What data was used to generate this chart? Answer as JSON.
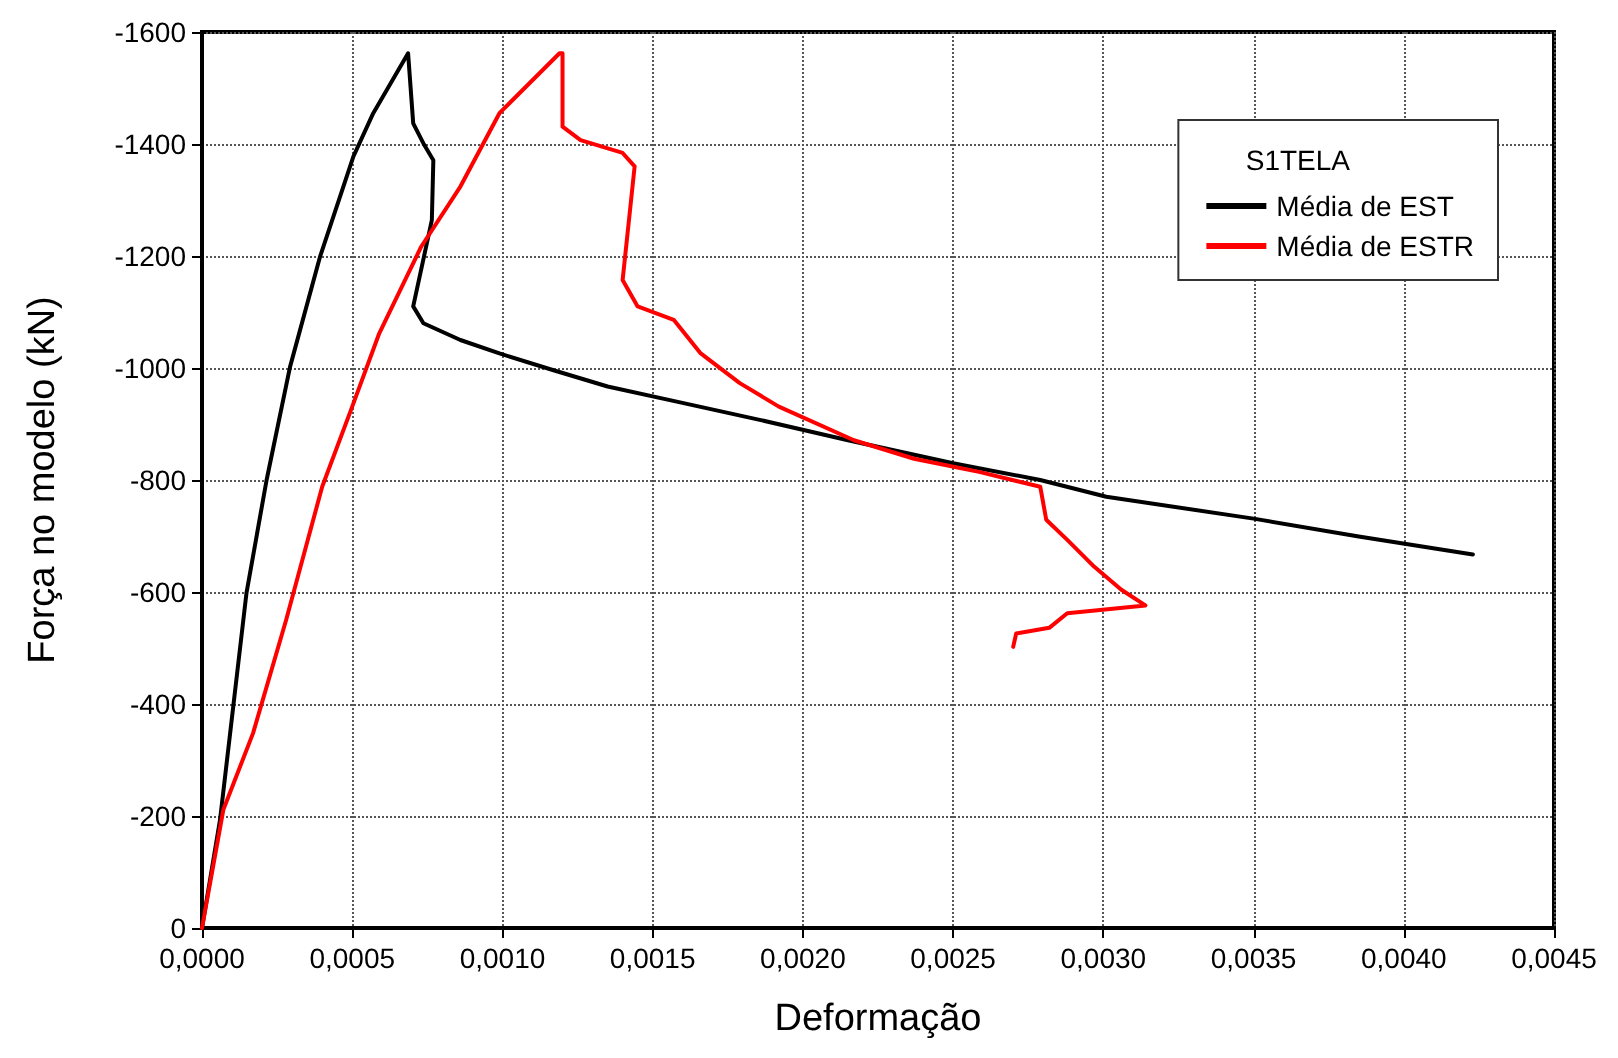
{
  "chart_data": {
    "type": "line",
    "xlabel": "Deformação",
    "ylabel": "Força no modelo (kN)",
    "legend_title": "S1TELA",
    "legend": "top right",
    "grid": true,
    "marker": "none",
    "line_style": "solid",
    "xlim": [
      0,
      0.0045
    ],
    "ylim": [
      0,
      -1600
    ],
    "xticks": [
      {
        "value": 0,
        "label": "0,0000"
      },
      {
        "value": 0.0005,
        "label": "0,0005"
      },
      {
        "value": 0.001,
        "label": "0,0010"
      },
      {
        "value": 0.0015,
        "label": "0,0015"
      },
      {
        "value": 0.002,
        "label": "0,0020"
      },
      {
        "value": 0.0025,
        "label": "0,0025"
      },
      {
        "value": 0.003,
        "label": "0,0030"
      },
      {
        "value": 0.0035,
        "label": "0,0035"
      },
      {
        "value": 0.004,
        "label": "0,0040"
      },
      {
        "value": 0.0045,
        "label": "0,0045"
      }
    ],
    "yticks": [
      0,
      -200,
      -400,
      -600,
      -800,
      -1000,
      -1200,
      -1400,
      -1600
    ],
    "series": [
      {
        "name": "Média de EST",
        "color": "#000000",
        "x": [
          0,
          6e-05,
          0.000148,
          0.000215,
          0.000293,
          0.000393,
          0.000504,
          0.00057,
          0.000686,
          0.000703,
          0.000737,
          0.00077,
          0.000765,
          0.000703,
          0.000737,
          0.00086,
          0.00099,
          0.00117,
          0.00135,
          0.00158,
          0.00186,
          0.00215,
          0.0025,
          0.00279,
          0.00301,
          0.0035,
          0.00385,
          0.00423
        ],
        "values": [
          0,
          -193,
          -598,
          -800,
          -1002,
          -1199,
          -1378,
          -1455,
          -1562,
          -1437,
          -1401,
          -1371,
          -1264,
          -1110,
          -1080,
          -1050,
          -1026,
          -996,
          -967,
          -940,
          -907,
          -871,
          -830,
          -800,
          -770,
          -731,
          -699,
          -667
        ]
      },
      {
        "name": "Média de ESTR",
        "color": "#ff0000",
        "x": [
          0,
          7.1e-05,
          0.00017,
          0.00028,
          0.0004,
          0.0005,
          0.00059,
          0.00073,
          0.00086,
          0.00099,
          0.00119,
          0.0012,
          0.0012,
          0.00126,
          0.0014,
          0.00144,
          0.0014,
          0.00145,
          0.00157,
          0.00166,
          0.00179,
          0.00192,
          0.00217,
          0.00237,
          0.00259,
          0.00279,
          0.00281,
          0.00288,
          0.00297,
          0.00306,
          0.00314,
          0.00288,
          0.00282,
          0.00271,
          0.0027
        ],
        "values": [
          0,
          -211,
          -348,
          -550,
          -788,
          -931,
          -1062,
          -1217,
          -1324,
          -1455,
          -1562,
          -1562,
          -1431,
          -1407,
          -1384,
          -1360,
          -1157,
          -1110,
          -1086,
          -1026,
          -973,
          -931,
          -871,
          -838,
          -814,
          -788,
          -729,
          -693,
          -645,
          -604,
          -576,
          -562,
          -536,
          -526,
          -502
        ]
      }
    ]
  }
}
